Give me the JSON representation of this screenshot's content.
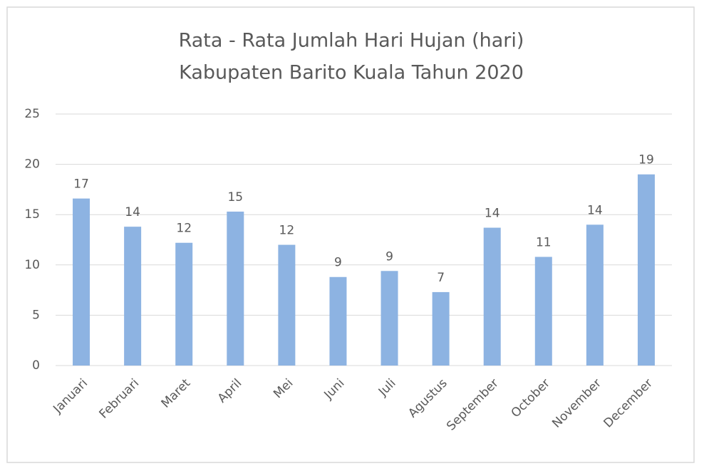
{
  "chart_data": {
    "type": "bar",
    "title": [
      "Rata - Rata Jumlah Hari Hujan (hari)",
      "Kabupaten Barito Kuala Tahun 2020"
    ],
    "categories": [
      "Januari",
      "Februari",
      "Maret",
      "April",
      "Mei",
      "Juni",
      "Juli",
      "Agustus",
      "September",
      "October",
      "November",
      "December"
    ],
    "values": [
      16.6,
      13.8,
      12.2,
      15.3,
      12.0,
      8.8,
      9.4,
      7.3,
      13.7,
      10.8,
      14.0,
      19.0
    ],
    "value_labels": [
      "17",
      "14",
      "12",
      "15",
      "12",
      "9",
      "9",
      "7",
      "14",
      "11",
      "14",
      "19"
    ],
    "color": "#8db3e2",
    "ylim": [
      0,
      25
    ],
    "yticks": [
      0,
      5,
      10,
      15,
      20,
      25
    ],
    "grid": true
  }
}
